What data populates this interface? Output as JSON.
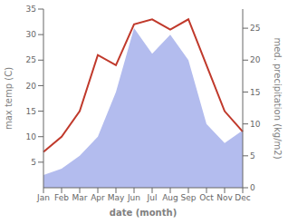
{
  "chart_data": {
    "type": "combo",
    "xlabel": "date (month)",
    "ylabel": "max temp (C)",
    "y2label": "med. precipitation (kg/m2)",
    "categories": [
      "Jan",
      "Feb",
      "Mar",
      "Apr",
      "May",
      "Jun",
      "Jul",
      "Aug",
      "Sep",
      "Oct",
      "Nov",
      "Dec"
    ],
    "series": [
      {
        "type": "area",
        "axis": "y2",
        "color": "#b3bcee",
        "values": [
          2,
          3,
          5,
          8,
          15,
          25,
          21,
          24,
          20,
          10,
          7,
          9
        ]
      },
      {
        "type": "line",
        "color": "#c0392b",
        "values": [
          7,
          10,
          15,
          26,
          24,
          32,
          33,
          31,
          33,
          24,
          15,
          11
        ]
      }
    ],
    "ylim": [
      0,
      35
    ],
    "yticks": [
      5,
      10,
      15,
      20,
      25,
      30,
      35
    ],
    "y2lim": [
      0,
      28
    ],
    "y2ticks": [
      0,
      5,
      10,
      15,
      20,
      25
    ],
    "grid": false
  }
}
